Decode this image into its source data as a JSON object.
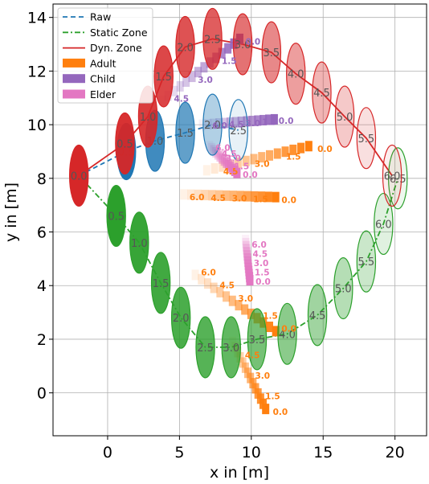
{
  "chart_data": {
    "type": "line",
    "xlabel": "x in [m]",
    "ylabel": "y in [m]",
    "xlim": [
      -3.8,
      22.2
    ],
    "ylim": [
      -1.6,
      14.5
    ],
    "xticks": [
      0,
      5,
      10,
      15,
      20
    ],
    "yticks": [
      0,
      2,
      4,
      6,
      8,
      10,
      12,
      14
    ],
    "grid": true,
    "legend_position": "top-left",
    "legend": [
      {
        "label": "Raw",
        "kind": "line",
        "style": "dashed",
        "color": "#1f77b4"
      },
      {
        "label": "Static Zone",
        "kind": "line",
        "style": "dashdot",
        "color": "#2ca02c"
      },
      {
        "label": "Dyn. Zone",
        "kind": "line",
        "style": "solid",
        "color": "#d62728"
      },
      {
        "label": "Adult",
        "kind": "patch",
        "color": "#ff7f0e"
      },
      {
        "label": "Child",
        "kind": "patch",
        "color": "#9467bd"
      },
      {
        "label": "Elder",
        "kind": "patch",
        "color": "#e377c2"
      }
    ],
    "series": [
      {
        "name": "Raw",
        "color": "#1f77b4",
        "style": "dashed",
        "x": [
          -2.0,
          1.3,
          3.3,
          5.4,
          7.3,
          9.1
        ],
        "y": [
          8.1,
          9.0,
          9.4,
          9.7,
          10.0,
          9.8
        ],
        "ellipses": [
          {
            "x": 1.3,
            "y": 9.0,
            "rx": 0.65,
            "ry": 0.6,
            "label": "0.5",
            "alpha": 1.0
          },
          {
            "x": 3.3,
            "y": 9.4,
            "rx": 0.65,
            "ry": 0.65,
            "label": "1.0",
            "alpha": 0.85
          },
          {
            "x": 5.4,
            "y": 9.7,
            "rx": 0.65,
            "ry": 0.65,
            "label": "1.5",
            "alpha": 0.7
          },
          {
            "x": 7.3,
            "y": 10.0,
            "rx": 0.65,
            "ry": 0.65,
            "label": "2.0",
            "alpha": 0.35
          },
          {
            "x": 9.1,
            "y": 9.8,
            "rx": 0.65,
            "ry": 0.65,
            "label": "2.5",
            "alpha": 0.1
          }
        ]
      },
      {
        "name": "Static Zone",
        "color": "#2ca02c",
        "style": "dashdot",
        "x": [
          -2.0,
          0.6,
          2.2,
          3.7,
          5.1,
          6.8,
          8.6,
          10.4,
          12.5,
          14.6,
          16.4,
          18.0,
          19.2,
          20.2
        ],
        "y": [
          8.1,
          6.6,
          5.6,
          4.1,
          2.8,
          1.7,
          1.7,
          2.0,
          2.2,
          2.9,
          3.9,
          4.9,
          6.3,
          8.0
        ],
        "ellipses": [
          {
            "x": 0.6,
            "y": 6.6,
            "rx": 0.65,
            "ry": 0.65,
            "label": "0.5",
            "alpha": 1.0
          },
          {
            "x": 2.2,
            "y": 5.6,
            "rx": 0.65,
            "ry": 0.65,
            "label": "1.0",
            "alpha": 0.95
          },
          {
            "x": 3.7,
            "y": 4.1,
            "rx": 0.65,
            "ry": 0.65,
            "label": "1.5",
            "alpha": 0.9
          },
          {
            "x": 5.1,
            "y": 2.8,
            "rx": 0.65,
            "ry": 0.65,
            "label": "2.0",
            "alpha": 0.85
          },
          {
            "x": 6.8,
            "y": 1.7,
            "rx": 0.65,
            "ry": 0.65,
            "label": "2.5",
            "alpha": 0.8
          },
          {
            "x": 8.6,
            "y": 1.7,
            "rx": 0.65,
            "ry": 0.65,
            "label": "3.0",
            "alpha": 0.75
          },
          {
            "x": 10.4,
            "y": 2.0,
            "rx": 0.65,
            "ry": 0.65,
            "label": "3.5",
            "alpha": 0.65
          },
          {
            "x": 12.5,
            "y": 2.2,
            "rx": 0.65,
            "ry": 0.65,
            "label": "4.0",
            "alpha": 0.55
          },
          {
            "x": 14.6,
            "y": 2.9,
            "rx": 0.65,
            "ry": 0.65,
            "label": "4.5",
            "alpha": 0.45
          },
          {
            "x": 16.4,
            "y": 3.9,
            "rx": 0.65,
            "ry": 0.65,
            "label": "5.0",
            "alpha": 0.35
          },
          {
            "x": 18.0,
            "y": 4.9,
            "rx": 0.65,
            "ry": 0.65,
            "label": "5.5",
            "alpha": 0.25
          },
          {
            "x": 19.2,
            "y": 6.3,
            "rx": 0.65,
            "ry": 0.65,
            "label": "6.0",
            "alpha": 0.15
          },
          {
            "x": 20.2,
            "y": 8.0,
            "rx": 0.65,
            "ry": 0.65,
            "label": "6.5",
            "alpha": 0.08
          }
        ]
      },
      {
        "name": "Dyn. Zone",
        "color": "#d62728",
        "style": "solid",
        "x": [
          -2.0,
          1.2,
          2.8,
          3.9,
          5.4,
          7.3,
          9.4,
          11.4,
          13.1,
          14.9,
          16.5,
          18.0,
          19.8
        ],
        "y": [
          8.1,
          9.3,
          10.3,
          11.8,
          12.9,
          13.2,
          13.0,
          12.7,
          11.9,
          11.2,
          10.3,
          9.5,
          8.1
        ],
        "ellipses": [
          {
            "x": -2.0,
            "y": 8.1,
            "rx": 0.65,
            "ry": 0.65,
            "label": "0.0",
            "alpha": 1.0
          },
          {
            "x": 1.2,
            "y": 9.3,
            "rx": 0.65,
            "ry": 0.65,
            "label": "0.5",
            "alpha": 0.95
          },
          {
            "x": 2.8,
            "y": 10.3,
            "rx": 0.65,
            "ry": 0.65,
            "label": "1.0",
            "alpha": 0.9
          },
          {
            "x": 3.9,
            "y": 11.8,
            "rx": 0.65,
            "ry": 0.65,
            "label": "1.5",
            "alpha": 0.85
          },
          {
            "x": 5.4,
            "y": 12.9,
            "rx": 0.65,
            "ry": 0.65,
            "label": "2.0",
            "alpha": 0.8
          },
          {
            "x": 7.3,
            "y": 13.2,
            "rx": 0.65,
            "ry": 0.65,
            "label": "2.5",
            "alpha": 0.75
          },
          {
            "x": 9.4,
            "y": 13.0,
            "rx": 0.65,
            "ry": 0.65,
            "label": "3.0",
            "alpha": 0.65
          },
          {
            "x": 11.4,
            "y": 12.7,
            "rx": 0.65,
            "ry": 0.65,
            "label": "3.5",
            "alpha": 0.55
          },
          {
            "x": 13.1,
            "y": 11.9,
            "rx": 0.65,
            "ry": 0.65,
            "label": "4.0",
            "alpha": 0.45
          },
          {
            "x": 14.9,
            "y": 11.2,
            "rx": 0.65,
            "ry": 0.65,
            "label": "4.5",
            "alpha": 0.35
          },
          {
            "x": 16.5,
            "y": 10.3,
            "rx": 0.65,
            "ry": 0.65,
            "label": "5.0",
            "alpha": 0.25
          },
          {
            "x": 18.0,
            "y": 9.5,
            "rx": 0.65,
            "ry": 0.65,
            "label": "5.5",
            "alpha": 0.15
          },
          {
            "x": 19.8,
            "y": 8.1,
            "rx": 0.65,
            "ry": 0.65,
            "label": "6.0",
            "alpha": 0.08
          }
        ]
      }
    ],
    "agents": [
      {
        "type": "Child",
        "color": "#9467bd",
        "start": [
          9.2,
          13.2
        ],
        "end": [
          3.8,
          10.9
        ],
        "label_offset": [
          0.4,
          -0.1
        ],
        "labels": [
          [
            "0.0",
            0
          ],
          [
            "1.5",
            4
          ],
          [
            "3.0",
            8
          ],
          [
            "4.5",
            12
          ]
        ]
      },
      {
        "type": "Child",
        "color": "#9467bd",
        "start": [
          11.6,
          10.2
        ],
        "end": [
          6.6,
          10.0
        ],
        "label_offset": [
          0.3,
          -0.05
        ],
        "labels": [
          [
            "0.0",
            0
          ],
          [
            "1.5",
            3
          ],
          [
            "3.0",
            6
          ],
          [
            "4.5",
            9
          ],
          [
            "6.0",
            12
          ]
        ]
      },
      {
        "type": "Adult",
        "color": "#ff7f0e",
        "start": [
          14.0,
          9.2
        ],
        "end": [
          6.9,
          8.3
        ],
        "label_offset": [
          0.6,
          -0.1
        ],
        "labels": [
          [
            "0.0",
            0
          ],
          [
            "1.5",
            4
          ],
          [
            "3.0",
            8
          ],
          [
            "4.5",
            12
          ]
        ]
      },
      {
        "type": "Elder",
        "color": "#e377c2",
        "start": [
          9.0,
          8.2
        ],
        "end": [
          7.1,
          9.2
        ],
        "label_offset": [
          0.4,
          -0.05
        ],
        "labels": [
          [
            "0.0",
            0
          ],
          [
            "1.5",
            4
          ],
          [
            "3.0",
            8
          ],
          [
            "4.5",
            10
          ],
          [
            "6.0",
            13
          ]
        ]
      },
      {
        "type": "Adult",
        "color": "#ff7f0e",
        "start": [
          11.7,
          7.3
        ],
        "end": [
          5.3,
          7.4
        ],
        "label_offset": [
          0.4,
          -0.1
        ],
        "labels": [
          [
            "0.0",
            0
          ],
          [
            "1.5",
            4
          ],
          [
            "3.0",
            7
          ],
          [
            "4.5",
            10
          ],
          [
            "6.0",
            13
          ]
        ]
      },
      {
        "type": "Elder",
        "color": "#e377c2",
        "start": [
          9.9,
          4.2
        ],
        "end": [
          9.6,
          5.7
        ],
        "label_offset": [
          0.4,
          -0.05
        ],
        "labels": [
          [
            "0.0",
            0
          ],
          [
            "1.5",
            3
          ],
          [
            "3.0",
            6
          ],
          [
            "4.5",
            9
          ],
          [
            "6.0",
            12
          ]
        ]
      },
      {
        "type": "Adult",
        "color": "#ff7f0e",
        "start": [
          11.7,
          2.3
        ],
        "end": [
          6.1,
          4.4
        ],
        "label_offset": [
          0.4,
          0.1
        ],
        "labels": [
          [
            "0.0",
            0
          ],
          [
            "1.5",
            3
          ],
          [
            "3.0",
            7
          ],
          [
            "4.5",
            10
          ],
          [
            "6.0",
            13
          ]
        ]
      },
      {
        "type": "Adult",
        "color": "#ff7f0e",
        "start": [
          11.0,
          -0.6
        ],
        "end": [
          8.7,
          1.9
        ],
        "label_offset": [
          0.5,
          -0.1
        ],
        "labels": [
          [
            "0.0",
            0
          ],
          [
            "1.5",
            3
          ],
          [
            "3.0",
            7
          ],
          [
            "4.5",
            11
          ]
        ]
      }
    ]
  }
}
